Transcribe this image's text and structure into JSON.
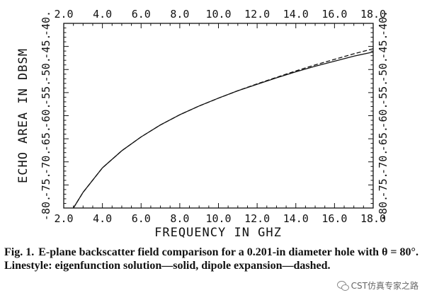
{
  "chart_data": {
    "type": "line",
    "xlabel": "FREQUENCY IN GHZ",
    "ylabel": "ECHO AREA IN DBSM",
    "xlim": [
      2.0,
      18.0
    ],
    "ylim": [
      -80,
      -40
    ],
    "x_ticks": [
      2.0,
      4.0,
      6.0,
      8.0,
      10.0,
      12.0,
      14.0,
      16.0,
      18.0
    ],
    "y_ticks": [
      -80,
      -75,
      -70,
      -65,
      -60,
      -55,
      -50,
      -45,
      -40
    ],
    "x_tick_labels": [
      "2.0",
      "4.0",
      "6.0",
      "8.0",
      "10.0",
      "12.0",
      "14.0",
      "16.0",
      "18.0"
    ],
    "y_tick_labels": [
      "-80.",
      "-75.",
      "-70.",
      "-65.",
      "-60.",
      "-55.",
      "-50.",
      "-45.",
      "-40."
    ],
    "mirrored_axes": true,
    "grid": false,
    "series": [
      {
        "style": "solid",
        "x": [
          2.5,
          3.0,
          4.0,
          5.0,
          6.0,
          7.0,
          8.0,
          9.0,
          10.0,
          11.0,
          12.0,
          13.0,
          14.0,
          15.0,
          16.0,
          17.0,
          18.0
        ],
        "y": [
          -80.0,
          -76.6,
          -71.3,
          -67.6,
          -64.6,
          -62.0,
          -59.8,
          -57.9,
          -56.2,
          -54.6,
          -53.2,
          -51.8,
          -50.5,
          -49.3,
          -48.2,
          -47.1,
          -46.2
        ]
      },
      {
        "style": "dashed",
        "x": [
          2.5,
          3.0,
          4.0,
          5.0,
          6.0,
          7.0,
          8.0,
          9.0,
          10.0,
          11.0,
          12.0,
          13.0,
          14.0,
          15.0,
          16.0,
          17.0,
          18.0
        ],
        "y": [
          -80.0,
          -76.6,
          -71.3,
          -67.6,
          -64.6,
          -62.0,
          -59.8,
          -57.9,
          -56.2,
          -54.6,
          -53.1,
          -51.7,
          -50.3,
          -49.0,
          -47.8,
          -46.6,
          -45.5
        ]
      }
    ]
  },
  "caption": {
    "label": "Fig. 1.",
    "text": "E-plane backscatter field comparison for a 0.201-in diameter hole with θ = 80°. Linestyle: eigenfunction solution—solid, dipole expansion—dashed."
  },
  "watermark": {
    "text": "CST仿真专家之路"
  },
  "colors": {
    "ink": "#111111",
    "background": "#ffffff"
  }
}
